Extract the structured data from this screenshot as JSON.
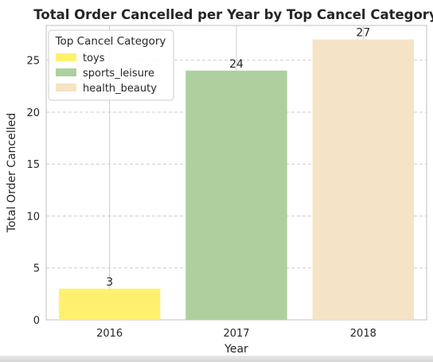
{
  "chart_data": {
    "type": "bar",
    "title": "Total Order Cancelled per Year by Top Cancel Category",
    "xlabel": "Year",
    "ylabel": "Total Order Cancelled",
    "categories": [
      "2016",
      "2017",
      "2018"
    ],
    "values": [
      3,
      24,
      27
    ],
    "bar_labels": [
      "3",
      "24",
      "27"
    ],
    "bar_categories": [
      "toys",
      "sports_leisure",
      "health_beauty"
    ],
    "ylim": [
      0,
      28.35
    ],
    "yticks": [
      0,
      5,
      10,
      15,
      20,
      25
    ],
    "ytick_labels": [
      "0",
      "5",
      "10",
      "15",
      "20",
      "25"
    ],
    "grid": true,
    "legend": {
      "title": "Top Cancel Category",
      "placement": "top-left",
      "entries": [
        {
          "label": "toys",
          "color": "#fff06e"
        },
        {
          "label": "sports_leisure",
          "color": "#aed09e"
        },
        {
          "label": "health_beauty",
          "color": "#f4e3c4"
        }
      ]
    },
    "colors": [
      "#fff06e",
      "#aed09e",
      "#f4e3c4"
    ]
  }
}
